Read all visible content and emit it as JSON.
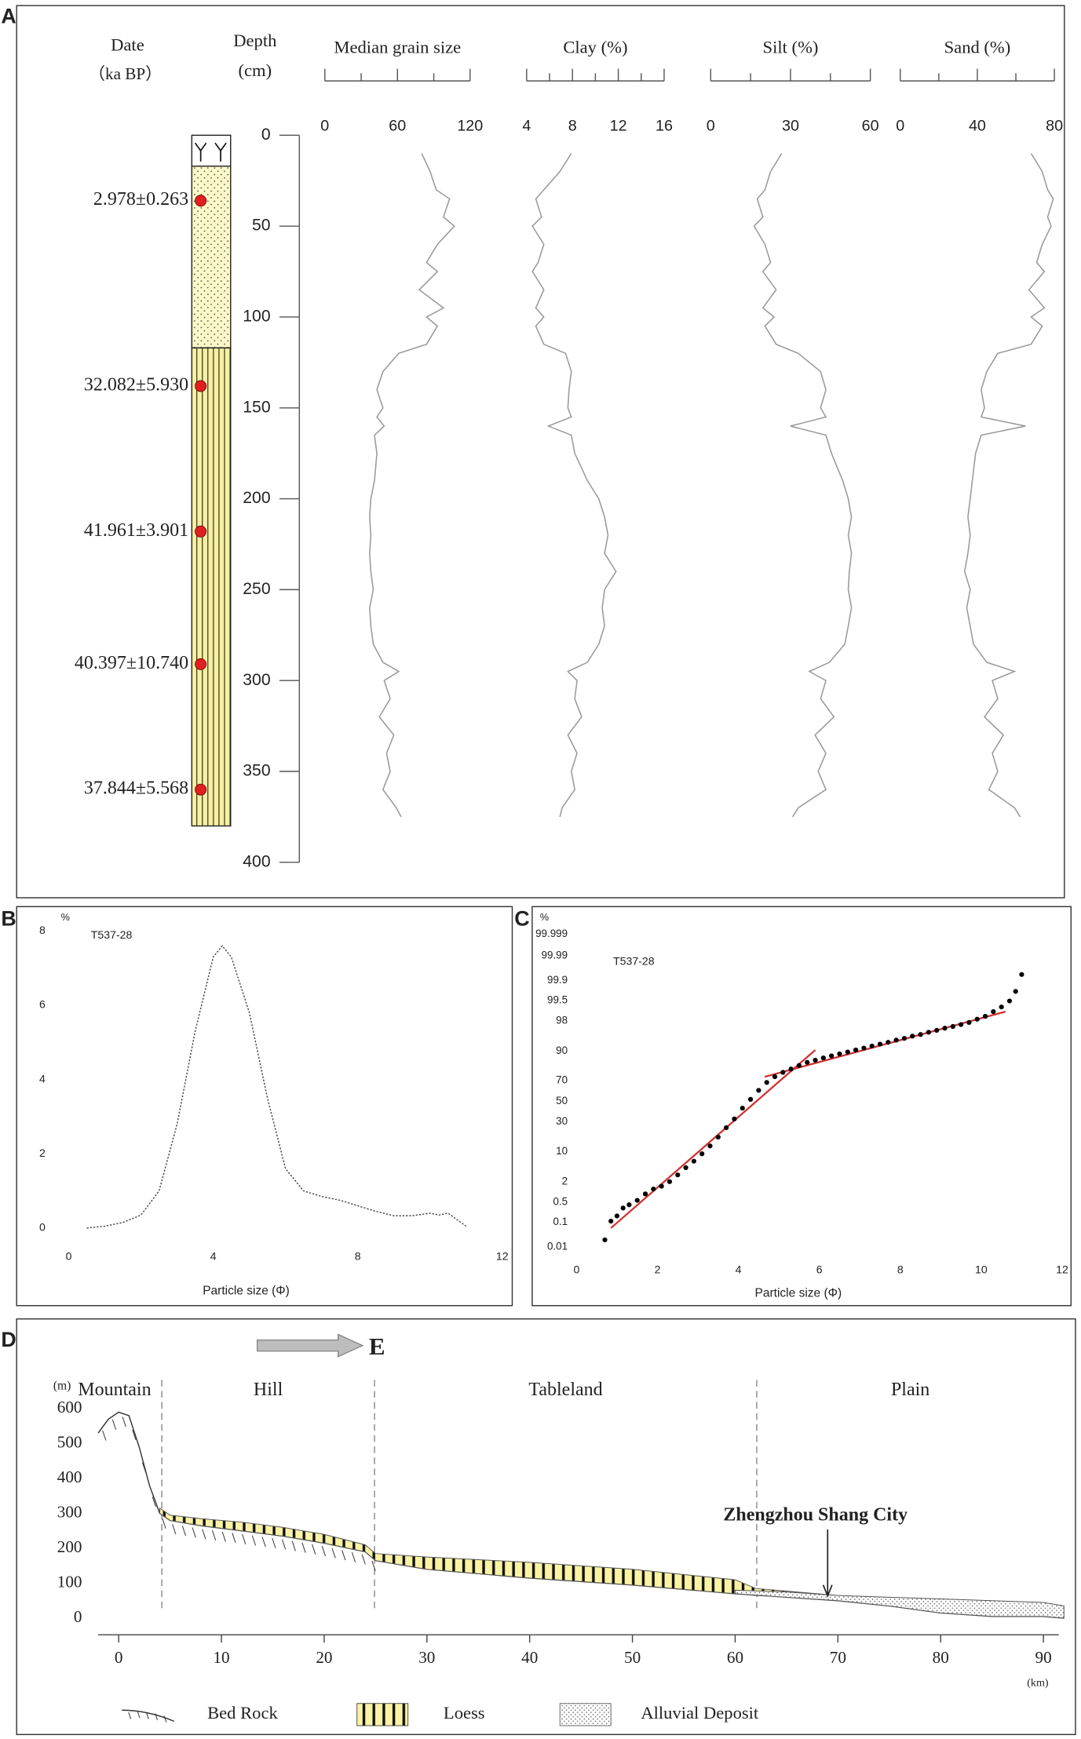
{
  "chart_data": [
    {
      "type": "depth-profile",
      "panel": "A",
      "date_header": "Date",
      "date_unit": "（ka BP）",
      "depth_header": "Depth",
      "depth_unit": "(cm)",
      "ylim": [
        0,
        400
      ],
      "yticks": [
        0,
        50,
        100,
        150,
        200,
        250,
        300,
        350,
        400
      ],
      "strata": [
        {
          "top": 0,
          "bottom": 17,
          "pattern": "soil"
        },
        {
          "top": 17,
          "bottom": 117,
          "pattern": "dotted"
        },
        {
          "top": 117,
          "bottom": 380,
          "pattern": "loess"
        }
      ],
      "dates": {
        "depth": [
          36,
          138,
          218,
          291,
          360
        ],
        "labels": [
          "2.978±0.263",
          "32.082±5.930",
          "41.961±3.901",
          "40.397±10.740",
          "37.844±5.568"
        ],
        "color": "#e02020"
      },
      "depth": [
        10,
        20,
        30,
        35,
        45,
        50,
        60,
        70,
        75,
        85,
        95,
        100,
        105,
        115,
        120,
        130,
        140,
        150,
        155,
        160,
        165,
        175,
        190,
        200,
        210,
        220,
        230,
        240,
        250,
        260,
        270,
        280,
        290,
        295,
        300,
        310,
        320,
        330,
        340,
        350,
        360,
        370,
        375
      ],
      "series": [
        {
          "name": "Median grain size",
          "color": "#9a9a9a",
          "xlim": [
            0,
            120
          ],
          "xticks": [
            0,
            60,
            120
          ],
          "xminor_ticks": [
            30,
            90
          ],
          "values": [
            80,
            87,
            92,
            103,
            98,
            107,
            93,
            84,
            93,
            78,
            98,
            84,
            93,
            84,
            61,
            48,
            43,
            48,
            43,
            49,
            41,
            43,
            41,
            38,
            37,
            38,
            37,
            38,
            40,
            37,
            38,
            40,
            48,
            61,
            49,
            54,
            45,
            57,
            51,
            54,
            48,
            59,
            63
          ]
        },
        {
          "name": "Clay (%)",
          "color": "#9a9a9a",
          "xlim": [
            4,
            16
          ],
          "xticks": [
            4,
            8,
            12,
            16
          ],
          "xminor_ticks": [
            6,
            10,
            14
          ],
          "values": [
            7.9,
            6.9,
            5.5,
            4.8,
            5.3,
            4.5,
            5.5,
            5.0,
            4.5,
            5.5,
            4.8,
            5.5,
            4.8,
            5.5,
            7.4,
            7.9,
            7.7,
            7.6,
            7.9,
            5.9,
            7.9,
            8.2,
            9.3,
            10.3,
            10.8,
            11.1,
            10.8,
            11.8,
            10.8,
            10.6,
            10.8,
            10.3,
            9.3,
            7.6,
            8.4,
            8.2,
            8.8,
            7.6,
            8.4,
            7.9,
            8.2,
            7.1,
            6.9
          ]
        },
        {
          "name": "Silt (%)",
          "color": "#9a9a9a",
          "xlim": [
            0,
            60
          ],
          "xticks": [
            0,
            30,
            60
          ],
          "xminor_ticks": [
            15,
            45
          ],
          "values": [
            26.7,
            22.5,
            20.4,
            17.5,
            19.6,
            16.3,
            20.4,
            22.5,
            19.6,
            24.6,
            19.6,
            23.8,
            20.4,
            24.6,
            32.9,
            41.3,
            43.3,
            41.3,
            43.3,
            30.0,
            43.3,
            45.4,
            49.6,
            51.7,
            52.9,
            51.7,
            52.9,
            52.1,
            51.7,
            52.9,
            51.7,
            50.4,
            44.6,
            37.1,
            43.3,
            41.3,
            46.3,
            39.2,
            43.3,
            40.4,
            43.3,
            32.9,
            30.8
          ]
        },
        {
          "name": "Sand (%)",
          "color": "#9a9a9a",
          "xlim": [
            0,
            80
          ],
          "xticks": [
            0,
            40,
            80
          ],
          "xminor_ticks": [
            20,
            60
          ],
          "values": [
            67.9,
            73.7,
            76.5,
            79.4,
            76.5,
            78.3,
            73.7,
            70.8,
            74.8,
            66.8,
            74.8,
            67.9,
            73.7,
            67.9,
            50.6,
            44.9,
            42.0,
            43.7,
            42.0,
            65.0,
            42.0,
            39.1,
            37.4,
            36.3,
            35.1,
            36.3,
            35.1,
            33.4,
            36.3,
            34.5,
            36.3,
            38.0,
            44.9,
            59.3,
            47.8,
            50.6,
            43.7,
            53.5,
            47.8,
            50.6,
            46.0,
            59.3,
            62.2
          ]
        }
      ]
    },
    {
      "type": "line",
      "panel": "B",
      "sample": "T537-28",
      "y_unit": "%",
      "x_label": "Particle size (Φ)",
      "xlim": [
        0,
        12
      ],
      "xticks": [
        0,
        4,
        8,
        12
      ],
      "ylim": [
        0,
        8
      ],
      "yticks": [
        0,
        2,
        4,
        6,
        8
      ],
      "x": [
        0.5,
        1,
        1.5,
        2,
        2.5,
        3,
        3.5,
        4,
        4.25,
        4.5,
        5,
        5.5,
        6,
        6.5,
        7,
        7.5,
        8,
        8.5,
        9,
        9.5,
        10,
        10.25,
        10.5,
        11
      ],
      "values": [
        0,
        0.05,
        0.15,
        0.35,
        1.0,
        2.8,
        5.3,
        7.3,
        7.6,
        7.3,
        5.8,
        3.5,
        1.6,
        1.0,
        0.85,
        0.75,
        0.6,
        0.45,
        0.33,
        0.33,
        0.4,
        0.35,
        0.4,
        0.05
      ],
      "color": "#444",
      "line_style": "dotted"
    },
    {
      "type": "scatter",
      "panel": "C",
      "sample": "T537-28",
      "y_unit": "%",
      "x_label": "Particle size (Φ)",
      "yscale": "probability",
      "xlim": [
        0,
        12
      ],
      "xticks": [
        0,
        2,
        4,
        6,
        8,
        10,
        12
      ],
      "ylim": [
        0.01,
        99.999
      ],
      "yticks": [
        0.01,
        0.1,
        0.5,
        2,
        10,
        30,
        50,
        70,
        90,
        98,
        99.5,
        99.9,
        99.99,
        99.999
      ],
      "x": [
        0.7,
        0.85,
        1.0,
        1.15,
        1.3,
        1.5,
        1.7,
        1.9,
        2.1,
        2.3,
        2.5,
        2.7,
        2.9,
        3.1,
        3.3,
        3.5,
        3.7,
        3.9,
        4.1,
        4.3,
        4.5,
        4.7,
        4.9,
        5.1,
        5.3,
        5.5,
        5.7,
        5.9,
        6.1,
        6.3,
        6.5,
        6.7,
        6.9,
        7.1,
        7.3,
        7.5,
        7.7,
        7.9,
        8.1,
        8.3,
        8.5,
        8.7,
        8.9,
        9.1,
        9.3,
        9.5,
        9.7,
        9.9,
        10.1,
        10.3,
        10.5,
        10.7,
        10.85,
        11.0
      ],
      "values": [
        0.02,
        0.11,
        0.17,
        0.32,
        0.41,
        0.57,
        0.9,
        1.25,
        1.5,
        2,
        3,
        4.5,
        6.3,
        9,
        12.7,
        18,
        25,
        32.6,
        43,
        52,
        61,
        68.5,
        73.5,
        77,
        79.5,
        82,
        84,
        85.3,
        86.6,
        87.7,
        88.7,
        89.6,
        90.5,
        91.3,
        92.1,
        92.8,
        93.4,
        94.1,
        94.6,
        95.2,
        95.6,
        96.1,
        96.5,
        96.9,
        97.2,
        97.5,
        97.8,
        98.2,
        98.5,
        98.9,
        99.2,
        99.48,
        99.75,
        99.94
      ],
      "color": "#000",
      "fit_lines": [
        {
          "x": [
            0.85,
            5.9
          ],
          "y": [
            0.06,
            90.5
          ]
        },
        {
          "x": [
            4.65,
            10.6
          ],
          "y": [
            73.4,
            98.9
          ]
        }
      ],
      "fit_color": "#d03030"
    },
    {
      "type": "profile",
      "panel": "D",
      "direction": "E",
      "y_unit": "(m)",
      "x_unit": "(km)",
      "xlim": [
        -2,
        91.5
      ],
      "xticks": [
        0,
        10,
        20,
        30,
        40,
        50,
        60,
        70,
        80,
        90
      ],
      "ylim": [
        0,
        600
      ],
      "yticks": [
        0,
        100,
        200,
        300,
        400,
        500,
        600
      ],
      "zones": [
        {
          "name": "Mountain",
          "from": -5,
          "to": 4.2
        },
        {
          "name": "Hill",
          "from": 4.2,
          "to": 24.9
        },
        {
          "name": "Tableland",
          "from": 24.9,
          "to": 62.1
        },
        {
          "name": "Plain",
          "from": 62.1,
          "to": 92
        }
      ],
      "bedrock": {
        "name": "Bed Rock",
        "color": "#333",
        "x": [
          -2,
          -1,
          0,
          1,
          2,
          3,
          4,
          5,
          8,
          12,
          16,
          20,
          24,
          25,
          30,
          40,
          50,
          60,
          70,
          75,
          80,
          85,
          90,
          92
        ],
        "y": [
          530,
          570,
          590,
          580,
          490,
          380,
          300,
          280,
          265,
          250,
          235,
          215,
          190,
          165,
          140,
          115,
          95,
          70,
          50,
          35,
          15,
          5,
          5,
          0
        ]
      },
      "layers": [
        {
          "name": "Loess",
          "color": "#faf3a5",
          "x": [
            4,
            5,
            8,
            12,
            16,
            20,
            24,
            25,
            30,
            40,
            50,
            60,
            62,
            66,
            70,
            73
          ],
          "top": [
            315,
            295,
            285,
            275,
            260,
            240,
            210,
            185,
            175,
            160,
            140,
            110,
            85,
            75,
            65,
            55
          ],
          "bottom": [
            300,
            280,
            265,
            250,
            235,
            215,
            190,
            165,
            140,
            115,
            95,
            70,
            65,
            60,
            50,
            50
          ]
        },
        {
          "name": "Alluvial Deposit",
          "color": "#ffffff",
          "x": [
            60,
            65,
            70,
            75,
            80,
            85,
            90,
            92
          ],
          "top": [
            80,
            75,
            65,
            60,
            55,
            50,
            45,
            35
          ],
          "bottom": [
            70,
            60,
            50,
            35,
            15,
            5,
            5,
            0
          ]
        }
      ],
      "annotation": {
        "text": "Zhengzhou Shang City",
        "x": 69,
        "color": "#c0272d"
      }
    }
  ]
}
